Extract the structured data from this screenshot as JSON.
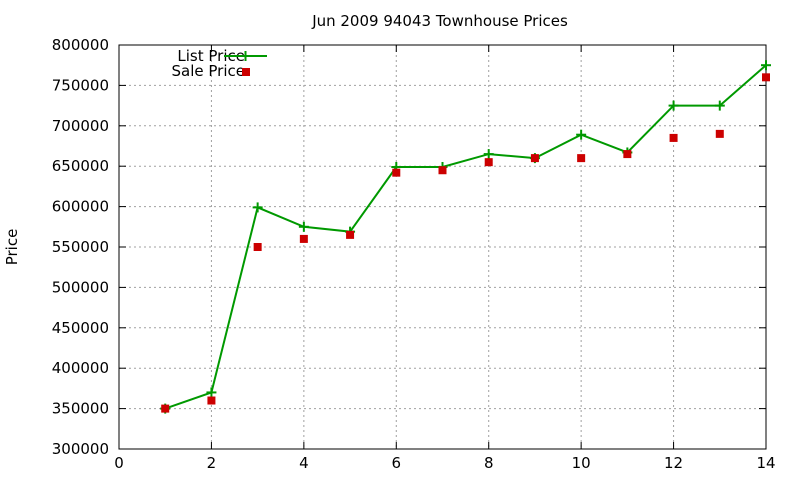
{
  "chart_data": {
    "type": "line",
    "title": "Jun 2009 94043 Townhouse Prices",
    "xlabel": "",
    "ylabel": "Price",
    "xlim": [
      0,
      14
    ],
    "ylim": [
      300000,
      800000
    ],
    "x_ticks": [
      0,
      2,
      4,
      6,
      8,
      10,
      12,
      14
    ],
    "y_ticks": [
      300000,
      350000,
      400000,
      450000,
      500000,
      550000,
      600000,
      650000,
      700000,
      750000,
      800000
    ],
    "grid": true,
    "legend_position": "top-left",
    "series": [
      {
        "name": "List Price",
        "style": "line-plus",
        "color": "#009900",
        "x": [
          1,
          2,
          3,
          4,
          5,
          6,
          7,
          8,
          9,
          10,
          11,
          12,
          13,
          14
        ],
        "y": [
          350000,
          370000,
          599000,
          575000,
          569000,
          649000,
          649000,
          665000,
          660000,
          689000,
          667000,
          725000,
          725000,
          775000
        ]
      },
      {
        "name": "Sale Price",
        "style": "square-points",
        "color": "#cc0000",
        "x": [
          1,
          2,
          3,
          4,
          5,
          6,
          7,
          8,
          9,
          10,
          11,
          12,
          13,
          14
        ],
        "y": [
          350000,
          360000,
          550000,
          560000,
          565000,
          642000,
          645000,
          655000,
          660000,
          660000,
          665000,
          685000,
          690000,
          760000
        ]
      }
    ]
  }
}
